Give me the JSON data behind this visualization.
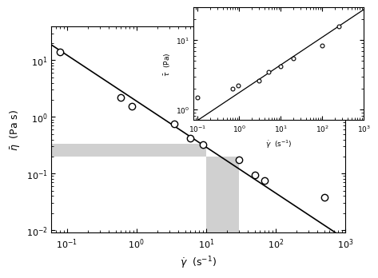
{
  "main": {
    "xlabel": "$\\dot{\\gamma}$  (s$^{-1}$)",
    "ylabel": "$\\bar{\\eta}$  (Pa s)",
    "xlim": [
      0.06,
      1000
    ],
    "ylim": [
      0.009,
      40
    ],
    "data_x": [
      0.08,
      0.6,
      0.85,
      3.5,
      6.0,
      9.0,
      30.0,
      50.0,
      70.0,
      500.0
    ],
    "data_y": [
      14.0,
      2.2,
      1.55,
      0.75,
      0.42,
      0.32,
      0.175,
      0.095,
      0.075,
      0.038
    ],
    "line_x": [
      0.055,
      1000.0
    ],
    "line_y": [
      20.0,
      0.007
    ],
    "gray_rect_top_x0": 0.06,
    "gray_rect_top_x1": 10.0,
    "gray_rect_top_y0": 0.2,
    "gray_rect_top_y1": 0.34,
    "gray_rect_bot_x0": 10.0,
    "gray_rect_bot_x1": 30.0,
    "gray_rect_bot_y0": 0.009,
    "gray_rect_bot_y1": 0.2
  },
  "inset": {
    "xlabel": "$\\dot{\\gamma}$  (s$^{-1}$)",
    "ylabel": "$\\bar{\\tau}$  (Pa)",
    "xlim": [
      0.08,
      1000
    ],
    "ylim": [
      0.7,
      30
    ],
    "data_x": [
      0.1,
      0.7,
      0.95,
      3.0,
      5.0,
      10.0,
      20.0,
      100.0,
      250.0
    ],
    "data_y": [
      1.5,
      2.0,
      2.2,
      2.6,
      3.5,
      4.2,
      5.5,
      8.5,
      16.0
    ],
    "line_x": [
      0.07,
      1000.0
    ],
    "line_y": [
      0.6,
      28.0
    ]
  },
  "gray_color": "#d0d0d0",
  "line_color": "#000000",
  "marker_facecolor": "white",
  "marker_edgecolor": "black"
}
